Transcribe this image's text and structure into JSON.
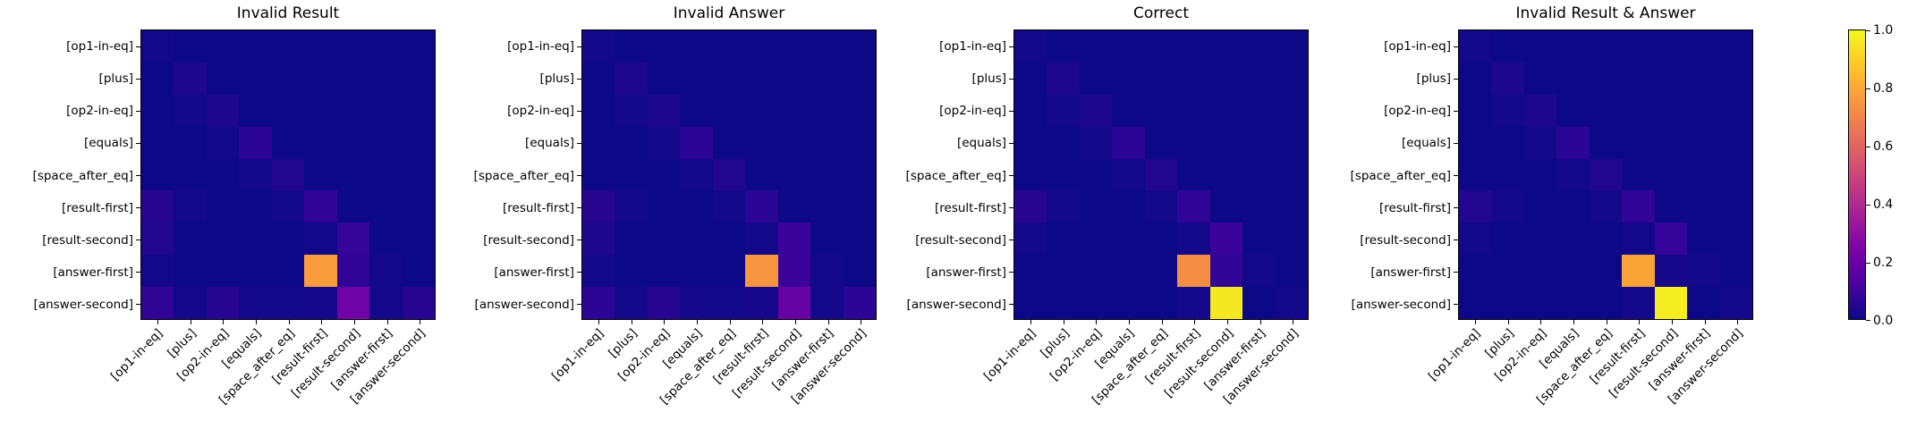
{
  "chart_data": [
    {
      "type": "heatmap",
      "title": "Invalid Result",
      "categories": [
        "[op1-in-eq]",
        "[plus]",
        "[op2-in-eq]",
        "[equals]",
        "[space_after_eq]",
        "[result-first]",
        "[result-second]",
        "[answer-first]",
        "[answer-second]"
      ],
      "values": [
        [
          0.01,
          0,
          0,
          0,
          0,
          0,
          0,
          0,
          0
        ],
        [
          0,
          0.03,
          0,
          0,
          0,
          0,
          0,
          0,
          0
        ],
        [
          0,
          0.01,
          0.03,
          0,
          0,
          0,
          0,
          0,
          0
        ],
        [
          0,
          0,
          0.01,
          0.06,
          0,
          0,
          0,
          0,
          0
        ],
        [
          0,
          0,
          0,
          0.01,
          0.04,
          0,
          0,
          0,
          0
        ],
        [
          0.05,
          0.01,
          0,
          0,
          0.01,
          0.07,
          0,
          0,
          0
        ],
        [
          0.04,
          0,
          0,
          0,
          0,
          0.01,
          0.08,
          0,
          0
        ],
        [
          0.01,
          0,
          0,
          0,
          0,
          0.77,
          0.07,
          0.01,
          0
        ],
        [
          0.07,
          0.01,
          0.05,
          0.01,
          0.01,
          0.02,
          0.21,
          0.01,
          0.05
        ]
      ],
      "vmin": 0.0,
      "vmax": 1.0,
      "grid": false
    },
    {
      "type": "heatmap",
      "title": "Invalid Answer",
      "categories": [
        "[op1-in-eq]",
        "[plus]",
        "[op2-in-eq]",
        "[equals]",
        "[space_after_eq]",
        "[result-first]",
        "[result-second]",
        "[answer-first]",
        "[answer-second]"
      ],
      "values": [
        [
          0.01,
          0,
          0,
          0,
          0,
          0,
          0,
          0,
          0
        ],
        [
          0,
          0.03,
          0,
          0,
          0,
          0,
          0,
          0,
          0
        ],
        [
          0,
          0.01,
          0.03,
          0,
          0,
          0,
          0,
          0,
          0
        ],
        [
          0,
          0,
          0.01,
          0.06,
          0,
          0,
          0,
          0,
          0
        ],
        [
          0,
          0,
          0,
          0.01,
          0.04,
          0,
          0,
          0,
          0
        ],
        [
          0.05,
          0.01,
          0,
          0,
          0.01,
          0.06,
          0,
          0,
          0
        ],
        [
          0.03,
          0,
          0,
          0,
          0,
          0.01,
          0.09,
          0,
          0
        ],
        [
          0.01,
          0,
          0,
          0,
          0,
          0.75,
          0.09,
          0.01,
          0
        ],
        [
          0.06,
          0.01,
          0.05,
          0.01,
          0.01,
          0.02,
          0.19,
          0.01,
          0.06
        ]
      ],
      "vmin": 0.0,
      "vmax": 1.0,
      "grid": false
    },
    {
      "type": "heatmap",
      "title": "Correct",
      "categories": [
        "[op1-in-eq]",
        "[plus]",
        "[op2-in-eq]",
        "[equals]",
        "[space_after_eq]",
        "[result-first]",
        "[result-second]",
        "[answer-first]",
        "[answer-second]"
      ],
      "values": [
        [
          0.01,
          0,
          0,
          0,
          0,
          0,
          0,
          0,
          0
        ],
        [
          0,
          0.03,
          0,
          0,
          0,
          0,
          0,
          0,
          0
        ],
        [
          0,
          0.01,
          0.03,
          0,
          0,
          0,
          0,
          0,
          0
        ],
        [
          0,
          0,
          0.01,
          0.06,
          0,
          0,
          0,
          0,
          0
        ],
        [
          0,
          0,
          0,
          0.01,
          0.04,
          0,
          0,
          0,
          0
        ],
        [
          0.05,
          0.01,
          0,
          0,
          0.01,
          0.07,
          0,
          0,
          0
        ],
        [
          0.01,
          0,
          0,
          0,
          0,
          0.01,
          0.09,
          0,
          0
        ],
        [
          0,
          0,
          0,
          0,
          0,
          0.73,
          0.07,
          0.01,
          0
        ],
        [
          0,
          0,
          0,
          0,
          0,
          0.01,
          0.96,
          0,
          0.01
        ]
      ],
      "vmin": 0.0,
      "vmax": 1.0,
      "grid": false
    },
    {
      "type": "heatmap",
      "title": "Invalid Result & Answer",
      "categories": [
        "[op1-in-eq]",
        "[plus]",
        "[op2-in-eq]",
        "[equals]",
        "[space_after_eq]",
        "[result-first]",
        "[result-second]",
        "[answer-first]",
        "[answer-second]"
      ],
      "values": [
        [
          0.01,
          0,
          0,
          0,
          0,
          0,
          0,
          0,
          0
        ],
        [
          0,
          0.03,
          0,
          0,
          0,
          0,
          0,
          0,
          0
        ],
        [
          0,
          0.01,
          0.03,
          0,
          0,
          0,
          0,
          0,
          0
        ],
        [
          0,
          0,
          0.01,
          0.06,
          0,
          0,
          0,
          0,
          0
        ],
        [
          0,
          0,
          0,
          0.01,
          0.04,
          0,
          0,
          0,
          0
        ],
        [
          0.04,
          0.01,
          0,
          0,
          0.01,
          0.07,
          0,
          0,
          0
        ],
        [
          0.01,
          0,
          0,
          0,
          0,
          0.01,
          0.08,
          0,
          0
        ],
        [
          0,
          0,
          0,
          0,
          0,
          0.79,
          0.02,
          0.01,
          0
        ],
        [
          0,
          0,
          0,
          0,
          0,
          0.01,
          0.97,
          0,
          0.01
        ]
      ],
      "vmin": 0.0,
      "vmax": 1.0,
      "grid": false
    }
  ],
  "colorbar": {
    "colormap": "plasma",
    "vmin": 0.0,
    "vmax": 1.0,
    "ticks": [
      "1.0",
      "0.8",
      "0.6",
      "0.4",
      "0.2",
      "0.0"
    ],
    "stops": [
      [
        13,
        8,
        135
      ],
      [
        76,
        2,
        161
      ],
      [
        126,
        3,
        168
      ],
      [
        170,
        35,
        149
      ],
      [
        204,
        71,
        120
      ],
      [
        230,
        108,
        92
      ],
      [
        248,
        149,
        64
      ],
      [
        253,
        197,
        39
      ],
      [
        240,
        249,
        33
      ]
    ],
    "background_hex": "#0d0887"
  }
}
